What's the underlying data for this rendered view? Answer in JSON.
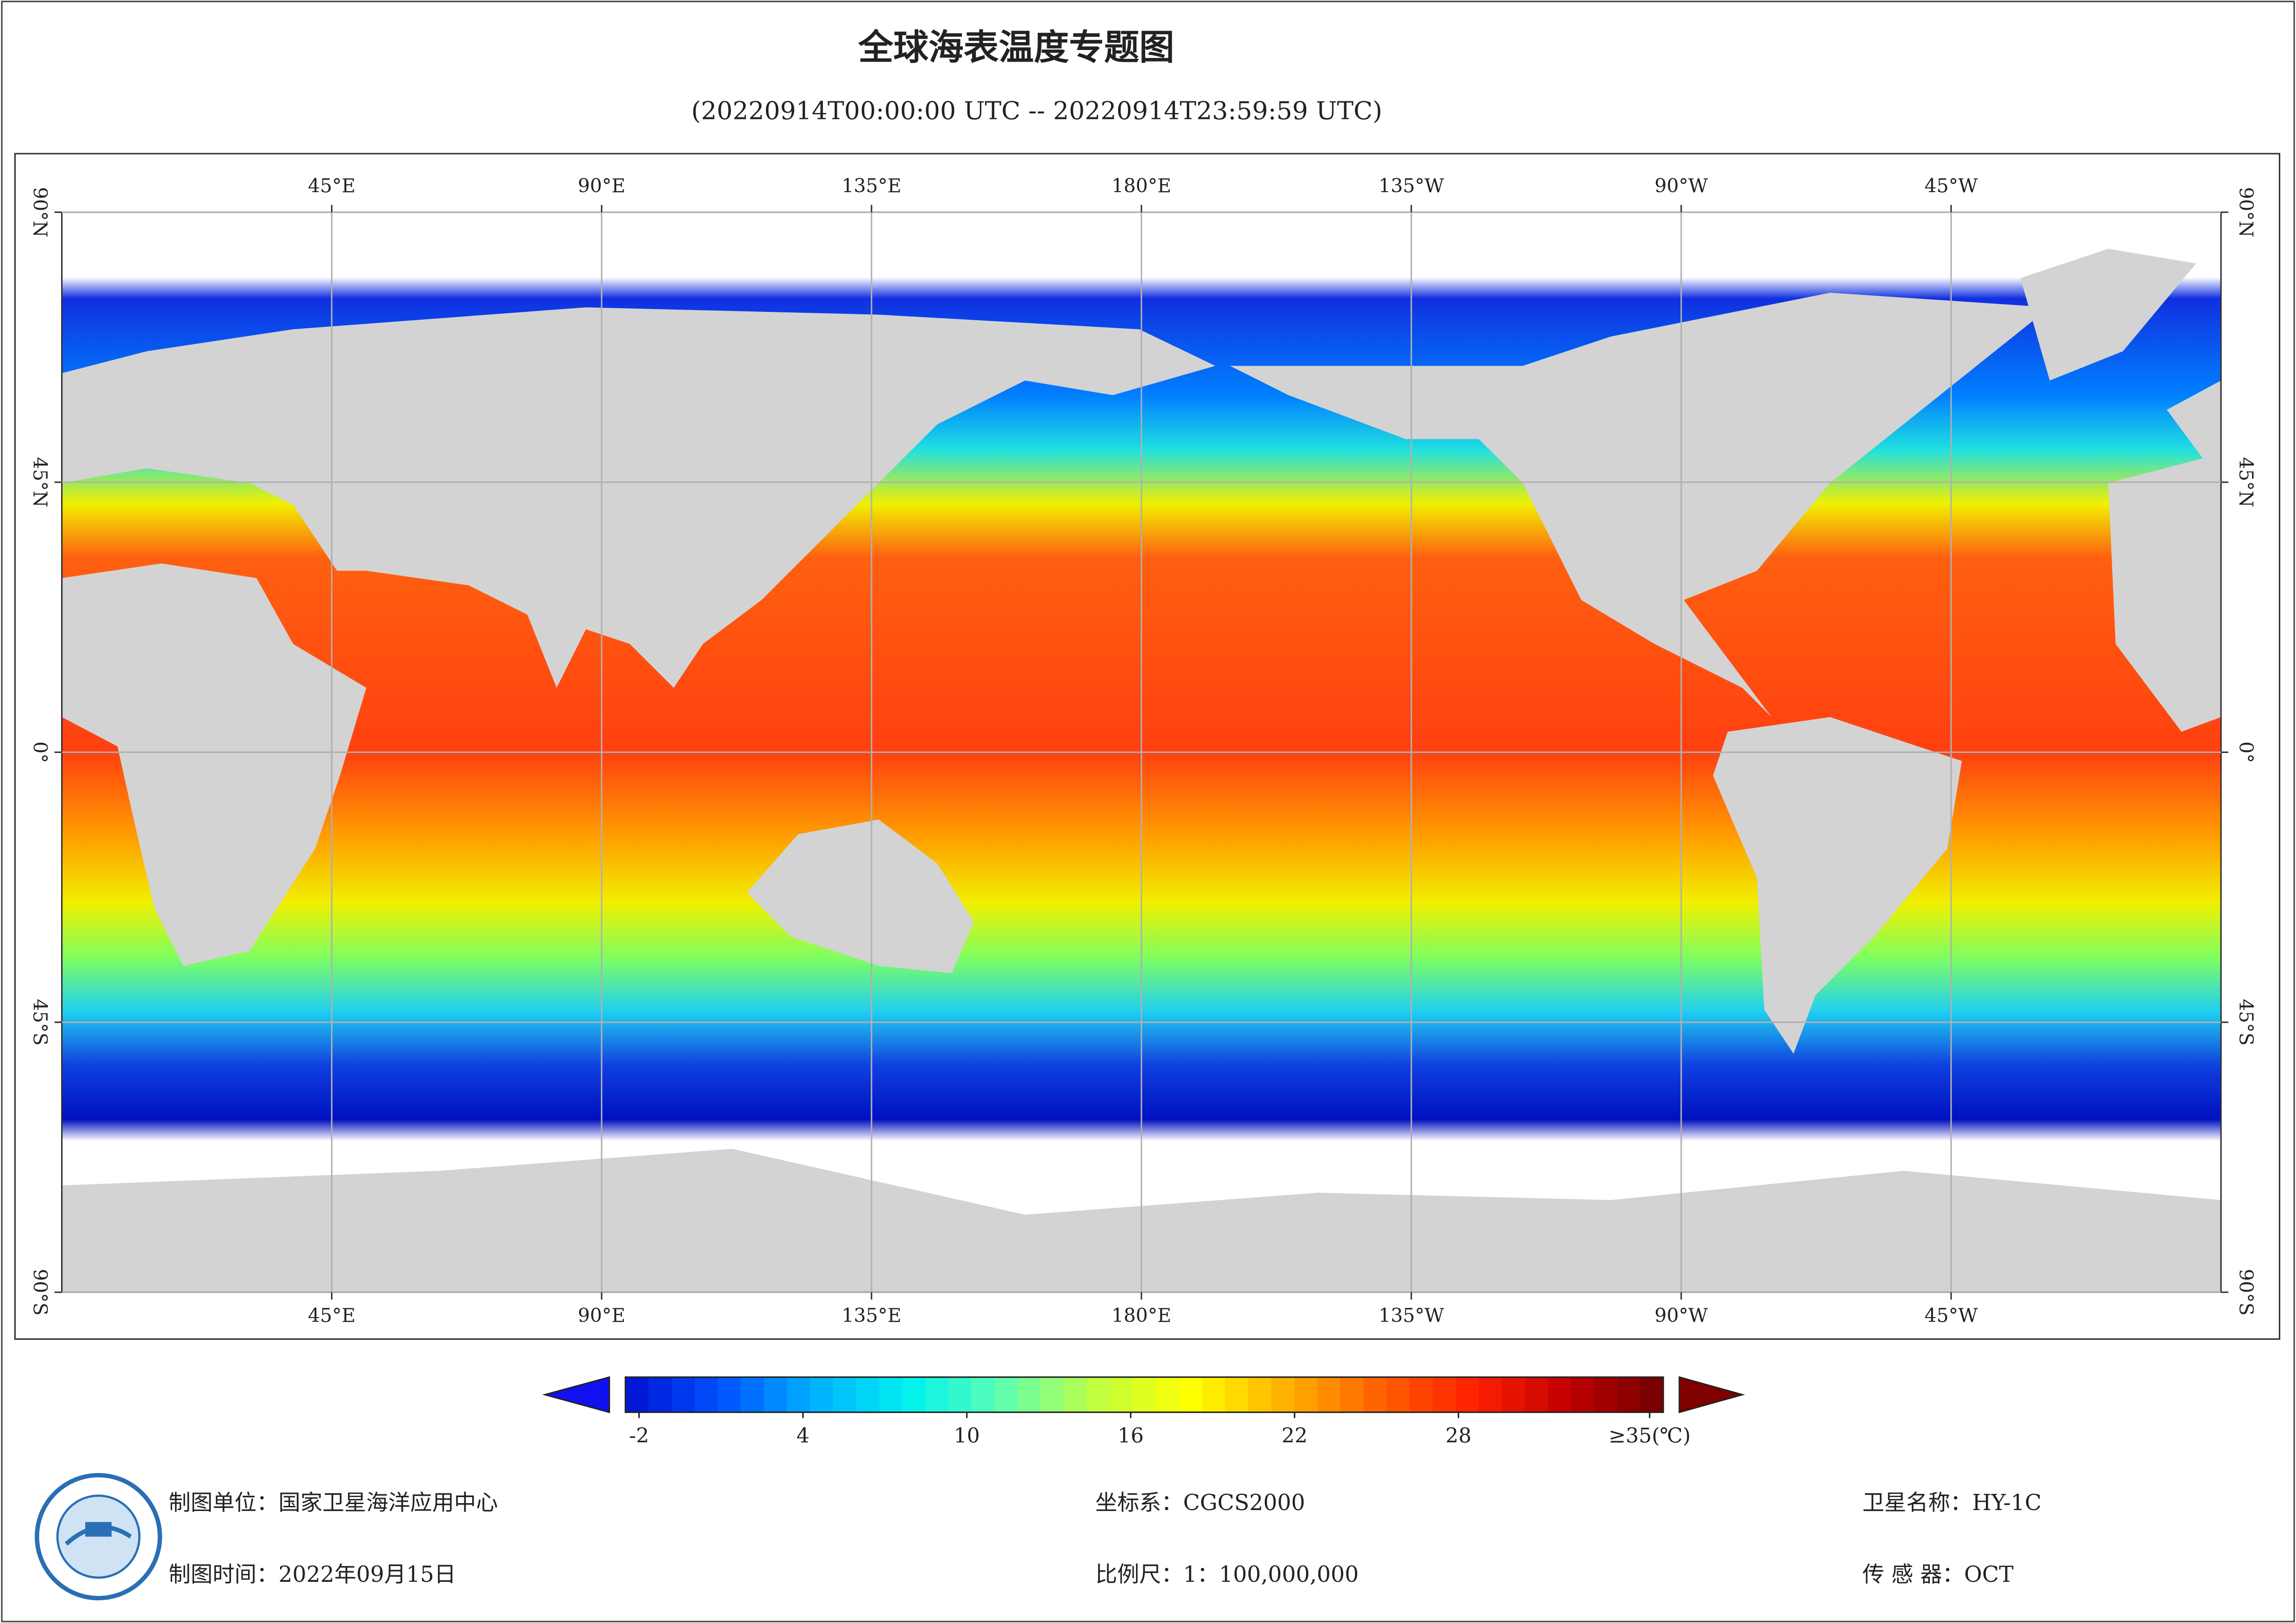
{
  "title": "全球海表温度专题图",
  "subtitle": "(20220914T00:00:00 UTC -- 20220914T23:59:59 UTC)",
  "map": {
    "lon_range": [
      0,
      360
    ],
    "lat_range": [
      -90,
      90
    ],
    "lon_ticks": [
      {
        "value": 45,
        "label": "45°E"
      },
      {
        "value": 90,
        "label": "90°E"
      },
      {
        "value": 135,
        "label": "135°E"
      },
      {
        "value": 180,
        "label": "180°E"
      },
      {
        "value": 225,
        "label": "135°W"
      },
      {
        "value": 270,
        "label": "90°W"
      },
      {
        "value": 315,
        "label": "45°W"
      }
    ],
    "lat_ticks": [
      {
        "value": 90,
        "label": "90°N"
      },
      {
        "value": 45,
        "label": "45°N"
      },
      {
        "value": 0,
        "label": "0°"
      },
      {
        "value": -45,
        "label": "45°S"
      },
      {
        "value": -90,
        "label": "90°S"
      }
    ],
    "grid": true,
    "land_color": "#d3d3d3"
  },
  "colorbar": {
    "lim": [
      -2.5,
      35.5
    ],
    "ticks": [
      -2,
      4,
      10,
      16,
      22,
      28,
      {
        "value": 35,
        "label": "≥35(℃)"
      }
    ],
    "colormap": [
      "#0010d0",
      "#0050ff",
      "#00b0ff",
      "#00f0f0",
      "#60ffb0",
      "#c0ff40",
      "#ffff00",
      "#ffb000",
      "#ff6000",
      "#ff2000",
      "#c00000",
      "#700000"
    ],
    "under_color": "#1010f0",
    "over_color": "#800000"
  },
  "footer": [
    "制图单位：国家卫星海洋应用中心",
    "制图时间：2022年09月15日",
    "坐标系：CGCS2000",
    "比例尺：1：100,000,000",
    "卫星名称：HY-1C",
    "传 感 器：OCT"
  ]
}
